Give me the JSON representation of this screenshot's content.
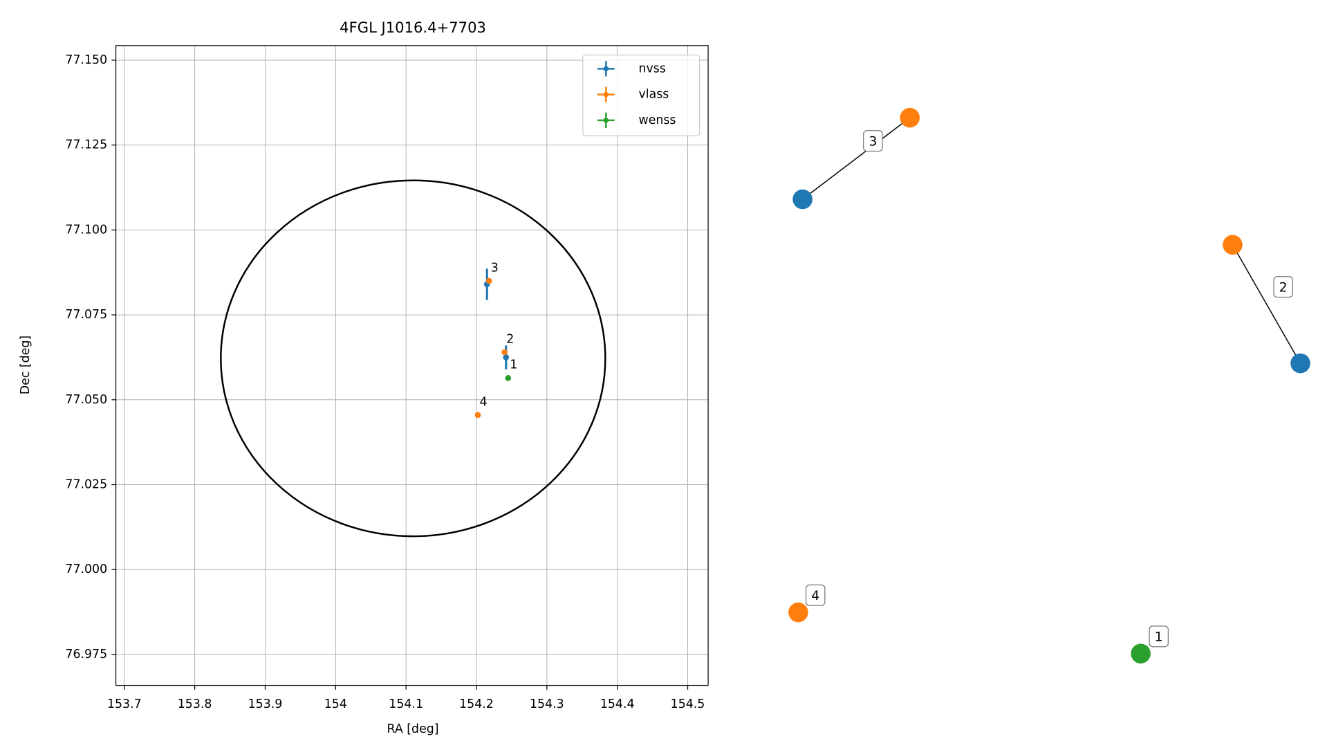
{
  "chart_data": {
    "type": "scatter",
    "title": "4FGL J1016.4+7703",
    "x_label": "RA [deg]",
    "y_label": "Dec [deg]",
    "xlim": [
      153.688,
      154.529
    ],
    "ylim": [
      76.9659,
      77.1543
    ],
    "xticks": [
      153.7,
      153.8,
      153.9,
      154.0,
      154.1,
      154.2,
      154.3,
      154.4,
      154.5
    ],
    "yticks": [
      {
        "value": 76.975,
        "label": "76.975"
      },
      {
        "value": 77,
        "label": "77.000"
      },
      {
        "value": 77.025,
        "label": "77.025"
      },
      {
        "value": 77.05,
        "label": "77.050"
      },
      {
        "value": 77.075,
        "label": "77.075"
      },
      {
        "value": 77.1,
        "label": "77.100"
      },
      {
        "value": 77.125,
        "label": "77.125"
      },
      {
        "value": 77.15,
        "label": "77.150"
      }
    ],
    "grid": true,
    "legend": "upper right",
    "series": [
      {
        "name": "nvss",
        "color": "#1f77b4",
        "x": [
          154.215,
          154.242
        ],
        "values": [
          77.084,
          77.0625
        ],
        "yerr": [
          0.0046,
          0.0035
        ]
      },
      {
        "name": "vlass",
        "color": "#ff7f0e",
        "x": [
          154.218,
          154.24,
          154.202
        ],
        "values": [
          77.085,
          77.064,
          77.0455
        ],
        "labels": [
          "3",
          "2",
          "4"
        ]
      },
      {
        "name": "wenss",
        "color": "#2ca02c",
        "x": [
          154.245
        ],
        "values": [
          77.0564
        ],
        "labels": [
          "1"
        ]
      }
    ],
    "circle": {
      "center_x": 154.11,
      "center_y": 77.0622,
      "rx": 0.273,
      "ry": 0.0524,
      "color": "#000000"
    }
  },
  "graph": {
    "components": [
      {
        "label": "1",
        "nodes": [
          "#2ca02c"
        ]
      },
      {
        "label": "2",
        "nodes": [
          "#ff7f0e",
          "#1f77b4"
        ]
      },
      {
        "label": "3",
        "nodes": [
          "#1f77b4",
          "#ff7f0e"
        ]
      },
      {
        "label": "4",
        "nodes": [
          "#ff7f0e"
        ]
      }
    ]
  }
}
